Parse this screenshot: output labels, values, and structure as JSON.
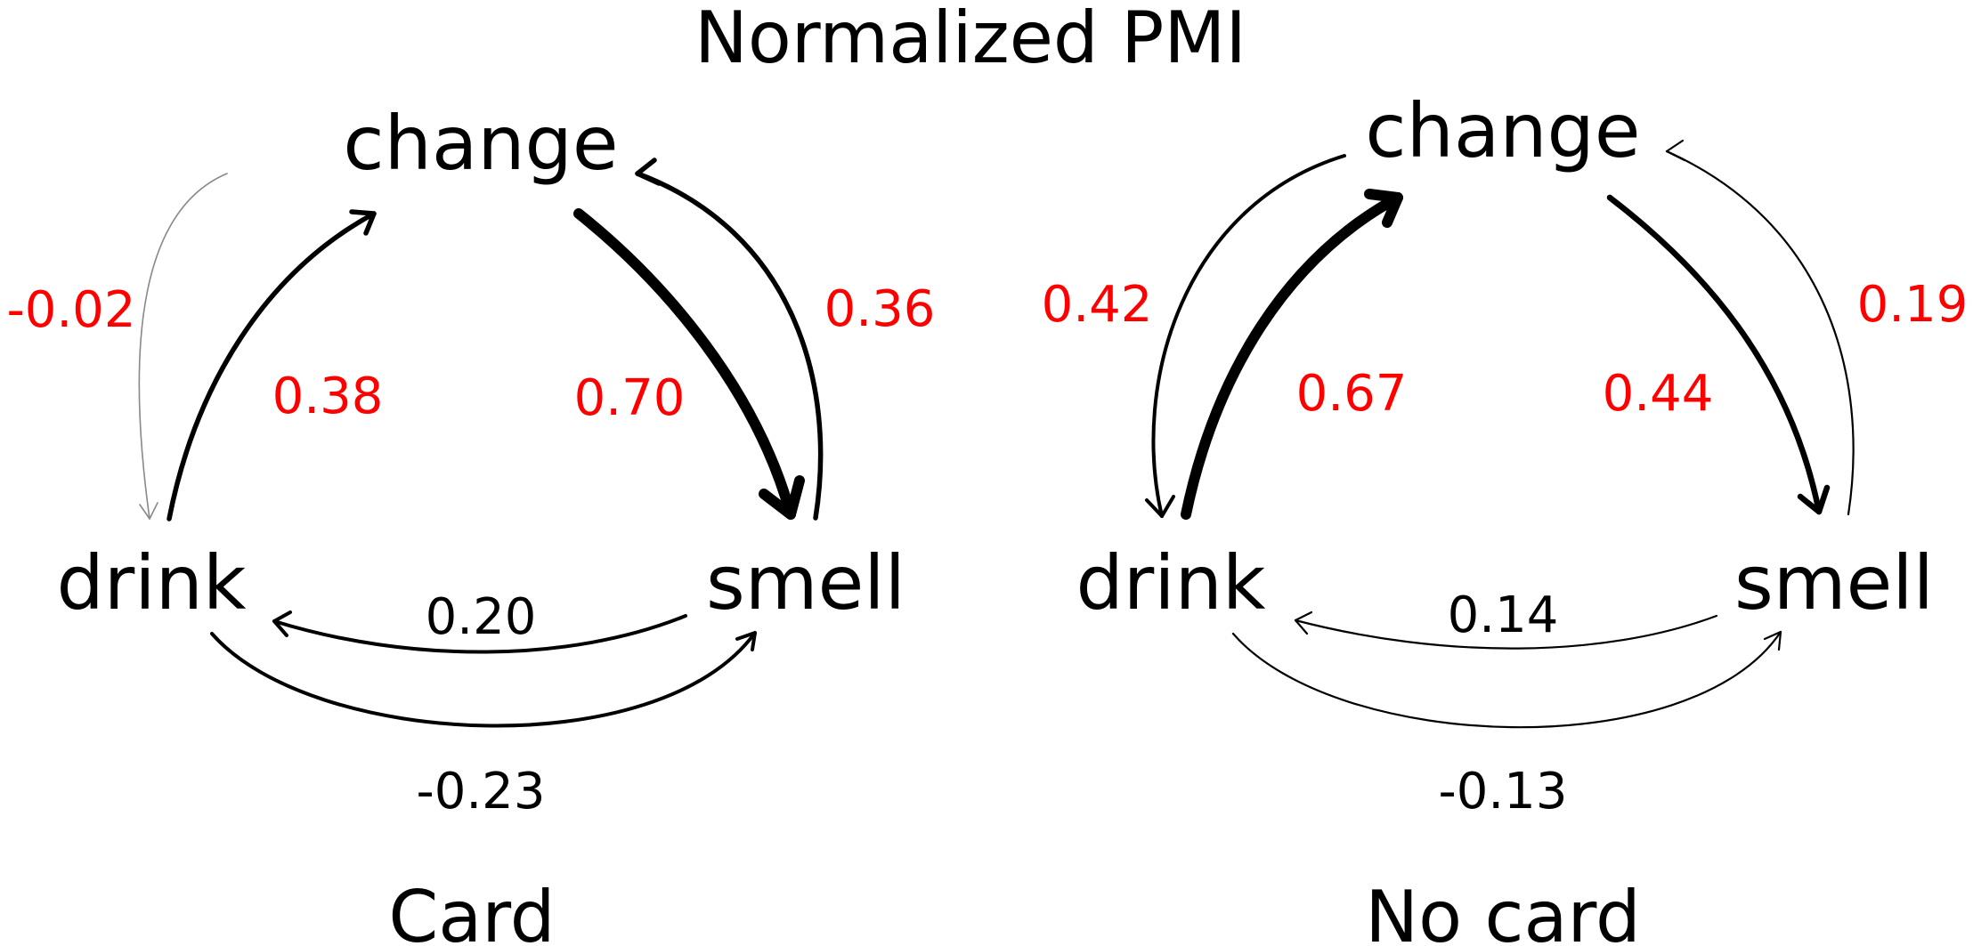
{
  "title": "Normalized PMI",
  "colors": {
    "positive_label": "#ff0000",
    "negative_label": "#000000",
    "edge": "#000000"
  },
  "panels": [
    {
      "label": "Card",
      "nodes": {
        "change": "change",
        "drink": "drink",
        "smell": "smell"
      },
      "edges": [
        {
          "from": "change",
          "to": "drink",
          "value": "-0.02"
        },
        {
          "from": "drink",
          "to": "change",
          "value": "0.38"
        },
        {
          "from": "change",
          "to": "smell",
          "value": "0.70"
        },
        {
          "from": "smell",
          "to": "change",
          "value": "0.36"
        },
        {
          "from": "smell",
          "to": "drink",
          "value": "0.20"
        },
        {
          "from": "drink",
          "to": "smell",
          "value": "-0.23"
        }
      ]
    },
    {
      "label": "No card",
      "nodes": {
        "change": "change",
        "drink": "drink",
        "smell": "smell"
      },
      "edges": [
        {
          "from": "change",
          "to": "drink",
          "value": "0.42"
        },
        {
          "from": "drink",
          "to": "change",
          "value": "0.67"
        },
        {
          "from": "change",
          "to": "smell",
          "value": "0.44"
        },
        {
          "from": "smell",
          "to": "change",
          "value": "0.19"
        },
        {
          "from": "smell",
          "to": "drink",
          "value": "0.14"
        },
        {
          "from": "drink",
          "to": "smell",
          "value": "-0.13"
        }
      ]
    }
  ]
}
